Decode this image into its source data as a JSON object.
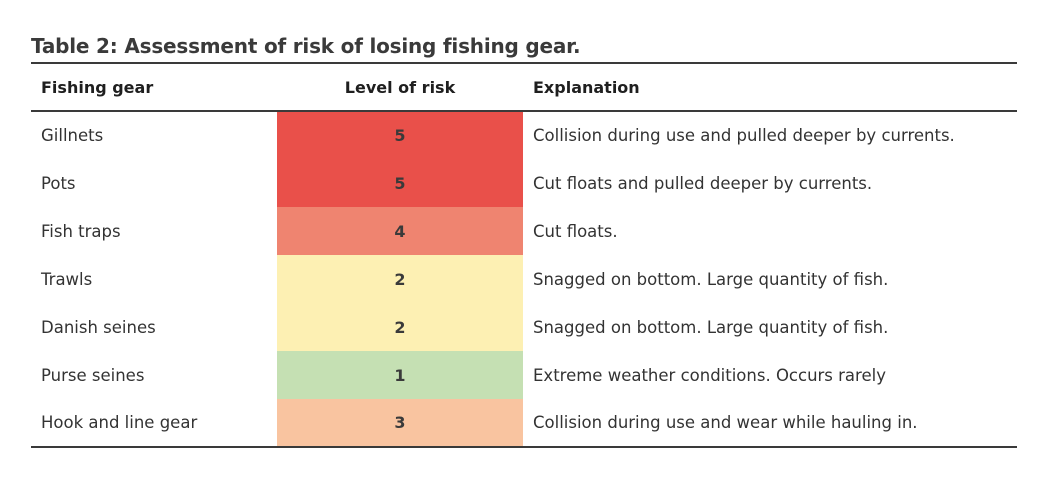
{
  "title": "Table 2: Assessment of risk of losing fishing gear.",
  "headers": {
    "gear": "Fishing gear",
    "risk": "Level of risk",
    "explanation": "Explanation"
  },
  "rows": [
    {
      "gear": "Gillnets",
      "risk": "5",
      "risk_color": "#e9504a",
      "explanation": "Collision during use and pulled deeper by currents."
    },
    {
      "gear": "Pots",
      "risk": "5",
      "risk_color": "#e9504a",
      "explanation": "Cut floats and pulled deeper by currents."
    },
    {
      "gear": "Fish traps",
      "risk": "4",
      "risk_color": "#ef8470",
      "explanation": "Cut floats."
    },
    {
      "gear": "Trawls",
      "risk": "2",
      "risk_color": "#fdf0b3",
      "explanation": "Snagged on bottom. Large quantity of fish."
    },
    {
      "gear": "Danish seines",
      "risk": "2",
      "risk_color": "#fdf0b3",
      "explanation": "Snagged on bottom. Large quantity of fish."
    },
    {
      "gear": "Purse seines",
      "risk": "1",
      "risk_color": "#c5e0b3",
      "explanation": "Extreme weather conditions. Occurs rarely"
    },
    {
      "gear": "Hook and line gear",
      "risk": "3",
      "risk_color": "#f9c4a0",
      "explanation": "Collision during use and wear while hauling in."
    }
  ]
}
